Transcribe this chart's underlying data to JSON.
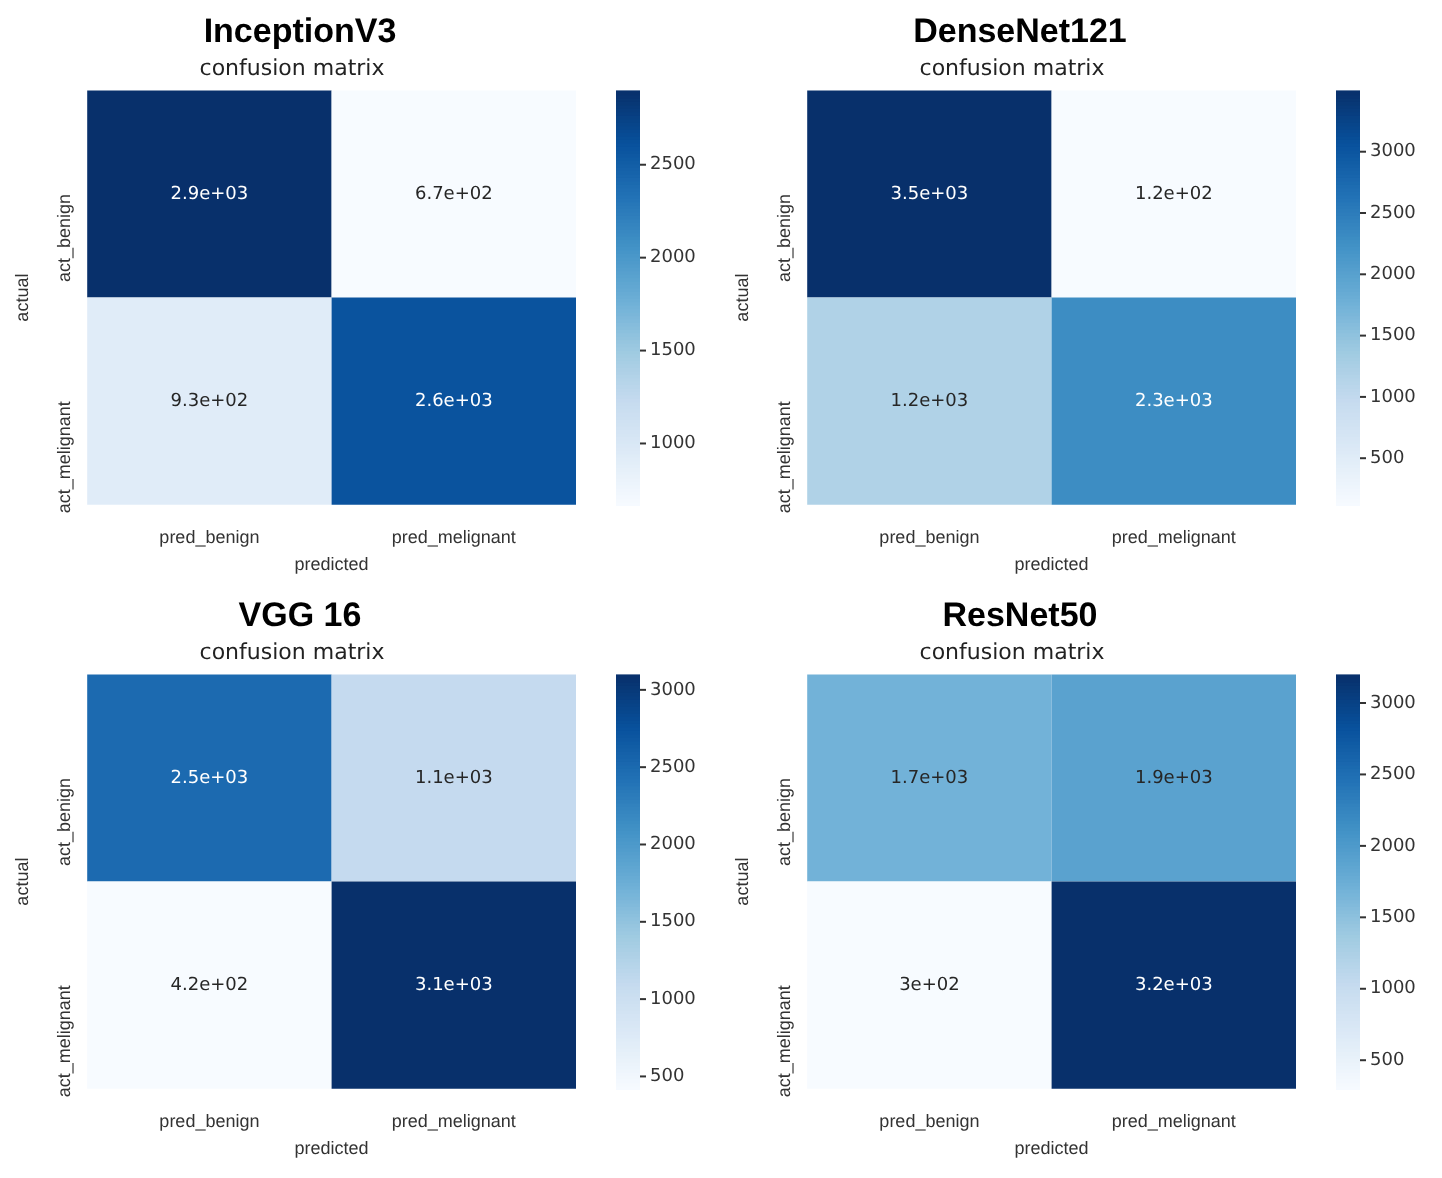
{
  "chart_data": [
    {
      "type": "heatmap",
      "title": "InceptionV3",
      "subtitle": "confusion matrix",
      "xlabel": "predicted",
      "ylabel": "actual",
      "categories": [
        "pred_benign",
        "pred_melignant"
      ],
      "y_categories": [
        "act_benign",
        "act_melignant"
      ],
      "cells": [
        [
          2900,
          670
        ],
        [
          930,
          2600
        ]
      ],
      "cell_labels": [
        [
          "2.9e+03",
          "6.7e+02"
        ],
        [
          "9.3e+02",
          "2.6e+03"
        ]
      ],
      "clim": [
        670,
        2900
      ],
      "cticks": [
        1000,
        1500,
        2000,
        2500
      ]
    },
    {
      "type": "heatmap",
      "title": "DenseNet121",
      "subtitle": "confusion matrix",
      "xlabel": "predicted",
      "ylabel": "actual",
      "categories": [
        "pred_benign",
        "pred_melignant"
      ],
      "y_categories": [
        "act_benign",
        "act_melignant"
      ],
      "cells": [
        [
          3500,
          120
        ],
        [
          1200,
          2300
        ]
      ],
      "cell_labels": [
        [
          "3.5e+03",
          "1.2e+02"
        ],
        [
          "1.2e+03",
          "2.3e+03"
        ]
      ],
      "clim": [
        120,
        3500
      ],
      "cticks": [
        500,
        1000,
        1500,
        2000,
        2500,
        3000
      ]
    },
    {
      "type": "heatmap",
      "title": "VGG 16",
      "subtitle": "confusion matrix",
      "xlabel": "predicted",
      "ylabel": "actual",
      "categories": [
        "pred_benign",
        "pred_melignant"
      ],
      "y_categories": [
        "act_benign",
        "act_melignant"
      ],
      "cells": [
        [
          2500,
          1100
        ],
        [
          420,
          3100
        ]
      ],
      "cell_labels": [
        [
          "2.5e+03",
          "1.1e+03"
        ],
        [
          "4.2e+02",
          "3.1e+03"
        ]
      ],
      "clim": [
        420,
        3100
      ],
      "cticks": [
        500,
        1000,
        1500,
        2000,
        2500,
        3000
      ]
    },
    {
      "type": "heatmap",
      "title": "ResNet50",
      "subtitle": "confusion matrix",
      "xlabel": "predicted",
      "ylabel": "actual",
      "categories": [
        "pred_benign",
        "pred_melignant"
      ],
      "y_categories": [
        "act_benign",
        "act_melignant"
      ],
      "cells": [
        [
          1700,
          1900
        ],
        [
          300,
          3200
        ]
      ],
      "cell_labels": [
        [
          "1.7e+03",
          "1.9e+03"
        ],
        [
          "3e+02",
          "3.2e+03"
        ]
      ],
      "clim": [
        300,
        3200
      ],
      "cticks": [
        500,
        1000,
        1500,
        2000,
        2500,
        3000
      ]
    }
  ]
}
